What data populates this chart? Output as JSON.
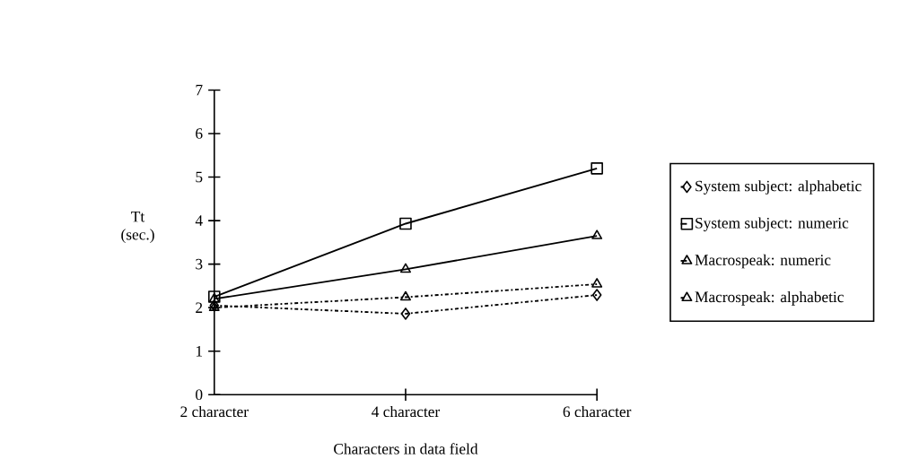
{
  "chart_data": {
    "type": "line",
    "xlabel": "Characters in data field",
    "ylabel": "Tt\n(sec.)",
    "categories": [
      "2 character",
      "4 character",
      "6 character"
    ],
    "series": [
      {
        "name": "System subject: alphabetic",
        "color": "#000000",
        "values": [
          2.05,
          1.86,
          2.29
        ],
        "marker": "diamond",
        "line_style": "dashdotted"
      },
      {
        "name": "System subject: numeric",
        "color": "#000000",
        "values": [
          2.25,
          3.93,
          5.2
        ],
        "marker": "square",
        "line_style": "solid"
      },
      {
        "name": "Macrospeak: numeric",
        "color": "#000000",
        "values": [
          2.2,
          2.88,
          3.65
        ],
        "marker": "triangle",
        "line_style": "solid"
      },
      {
        "name": "Macrospeak: alphabetic",
        "color": "#000000",
        "values": [
          2.0,
          2.24,
          2.54
        ],
        "marker": "triangle",
        "line_style": "dashdotted"
      }
    ],
    "ylim": [
      0,
      7
    ],
    "yticks": [
      0,
      1,
      2,
      3,
      4,
      5,
      6,
      7
    ],
    "grid": false,
    "legend": "right"
  }
}
